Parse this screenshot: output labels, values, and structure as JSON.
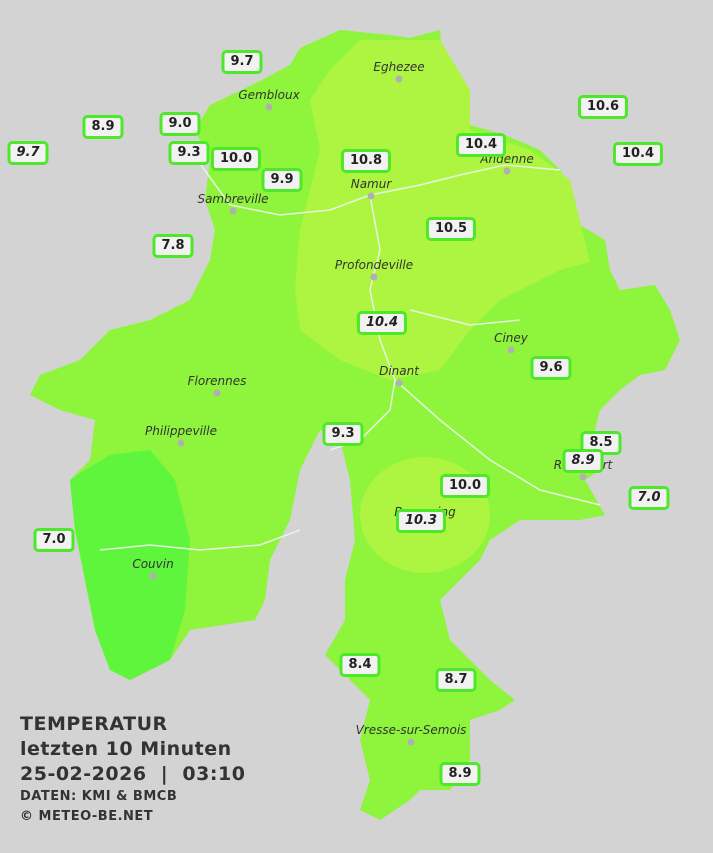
{
  "legend": {
    "title": "TEMPERATUR",
    "period": "letzten 10 Minuten",
    "timestamp": "25-02-2026  |  03:10",
    "source": "DATEN: KMI & BMCB",
    "copyright": "© METEO-BE.NET"
  },
  "cities": [
    "Eghezee",
    "Gembloux",
    "Andenne",
    "Namur",
    "Sambreville",
    "Profondeville",
    "Ciney",
    "Dinant",
    "Florennes",
    "Philippeville",
    "Beauraing",
    "Rochefort",
    "Couvin",
    "Vresse-sur-Semois"
  ],
  "stations": [
    "9.7",
    "8.9",
    "9.0",
    "9.7",
    "9.3",
    "10.0",
    "9.9",
    "10.8",
    "10.4",
    "10.6",
    "10.4",
    "10.5",
    "7.8",
    "10.4",
    "9.6",
    "9.3",
    "8.5",
    "8.9",
    "10.0",
    "7.0",
    "10.3",
    "7.0",
    "8.4",
    "8.7",
    "8.9"
  ]
}
